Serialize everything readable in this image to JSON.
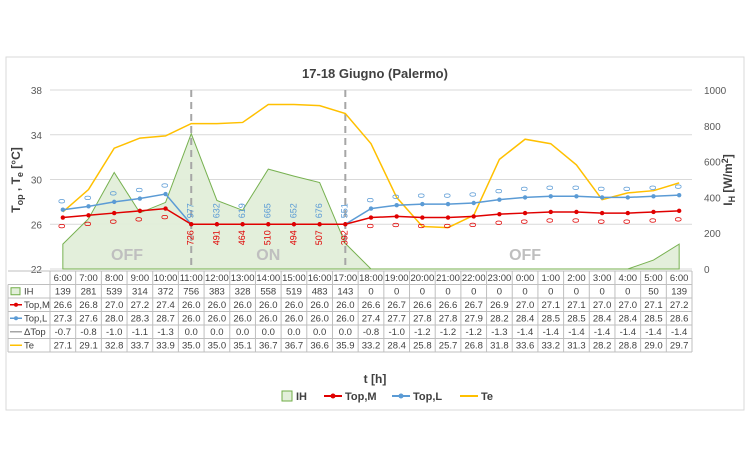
{
  "chart_data": {
    "type": "combo",
    "title": "17-18 Giugno (Palermo)",
    "xlabel": "t [h]",
    "ylabel_left": "Top , Te [°C]",
    "ylabel_left_parts": {
      "t1": "T",
      "s1": "op",
      "sep": " , ",
      "t2": "T",
      "s2": "e",
      "unit": " [°C]"
    },
    "ylabel_right": "IH [W/m²]",
    "ylabel_right_parts": {
      "t1": "I",
      "s1": "H",
      "unit": " [W/m",
      "sup": "2",
      "end": "]"
    },
    "ylim_left": [
      22,
      38
    ],
    "yticks_left": [
      22,
      26,
      30,
      34,
      38
    ],
    "ylim_right": [
      0,
      1000
    ],
    "yticks_right": [
      0,
      200,
      400,
      600,
      800,
      1000
    ],
    "grid": true,
    "legend_position": "bottom",
    "categories": [
      "6:00",
      "7:00",
      "8:00",
      "9:00",
      "10:00",
      "11:00",
      "12:00",
      "13:00",
      "14:00",
      "15:00",
      "16:00",
      "17:00",
      "18:00",
      "19:00",
      "20:00",
      "21:00",
      "22:00",
      "23:00",
      "0:00",
      "1:00",
      "2:00",
      "3:00",
      "4:00",
      "5:00",
      "6:00"
    ],
    "series": [
      {
        "name": "IH",
        "type": "area",
        "axis": "right",
        "color": "#70ad47",
        "values": [
          139,
          281,
          539,
          314,
          372,
          756,
          383,
          328,
          558,
          519,
          483,
          143,
          0,
          0,
          0,
          0,
          0,
          0,
          0,
          0,
          0,
          0,
          0,
          50,
          139
        ],
        "labels": [
          "139",
          "281",
          "539",
          "314",
          "372",
          "756",
          "383",
          "328",
          "558",
          "519",
          "483",
          "143",
          "0",
          "0",
          "0",
          "0",
          "0",
          "0",
          "0",
          "0",
          "0",
          "0",
          "0",
          "50",
          "139"
        ]
      },
      {
        "name": "Top,M",
        "type": "line",
        "axis": "left",
        "color": "#e00000",
        "values": [
          26.6,
          26.8,
          27.0,
          27.2,
          27.4,
          26.0,
          26.0,
          26.0,
          26.0,
          26.0,
          26.0,
          26.0,
          26.6,
          26.7,
          26.6,
          26.6,
          26.7,
          26.9,
          27.0,
          27.1,
          27.1,
          27.0,
          27.0,
          27.1,
          27.2
        ],
        "labels": [
          "26.6",
          "26.8",
          "27.0",
          "27.2",
          "27.4",
          "26.0",
          "26.0",
          "26.0",
          "26.0",
          "26.0",
          "26.0",
          "26.0",
          "26.6",
          "26.7",
          "26.6",
          "26.6",
          "26.7",
          "26.9",
          "27.0",
          "27.1",
          "27.1",
          "27.0",
          "27.0",
          "27.1",
          "27.2"
        ]
      },
      {
        "name": "Top,L",
        "type": "line",
        "axis": "left",
        "color": "#5b9bd5",
        "values": [
          27.3,
          27.6,
          28.0,
          28.3,
          28.7,
          26.0,
          26.0,
          26.0,
          26.0,
          26.0,
          26.0,
          26.0,
          27.4,
          27.7,
          27.8,
          27.8,
          27.9,
          28.2,
          28.4,
          28.5,
          28.5,
          28.4,
          28.4,
          28.5,
          28.6
        ],
        "labels": [
          "27.3",
          "27.6",
          "28.0",
          "28.3",
          "28.7",
          "26.0",
          "26.0",
          "26.0",
          "26.0",
          "26.0",
          "26.0",
          "26.0",
          "27.4",
          "27.7",
          "27.8",
          "27.8",
          "27.9",
          "28.2",
          "28.4",
          "28.5",
          "28.5",
          "28.4",
          "28.4",
          "28.5",
          "28.6"
        ]
      },
      {
        "name": "ΔTop",
        "type": "table-only",
        "color": "#a5a5a5",
        "values": [
          -0.7,
          -0.8,
          -1.0,
          -1.1,
          -1.3,
          0.0,
          0.0,
          0.0,
          0.0,
          0.0,
          0.0,
          0.0,
          -0.8,
          -1.0,
          -1.2,
          -1.2,
          -1.2,
          -1.3,
          -1.4,
          -1.4,
          -1.4,
          -1.4,
          -1.4,
          -1.4,
          -1.4
        ],
        "labels": [
          "-0.7",
          "-0.8",
          "-1.0",
          "-1.1",
          "-1.3",
          "0.0",
          "0.0",
          "0.0",
          "0.0",
          "0.0",
          "0.0",
          "0.0",
          "-0.8",
          "-1.0",
          "-1.2",
          "-1.2",
          "-1.2",
          "-1.3",
          "-1.4",
          "-1.4",
          "-1.4",
          "-1.4",
          "-1.4",
          "-1.4",
          "-1.4"
        ]
      },
      {
        "name": "Te",
        "type": "line",
        "axis": "left",
        "color": "#ffc000",
        "values": [
          27.1,
          29.1,
          32.8,
          33.7,
          33.9,
          35.0,
          35.0,
          35.1,
          36.7,
          36.7,
          36.6,
          35.9,
          33.2,
          28.4,
          25.8,
          25.7,
          26.8,
          31.8,
          33.6,
          33.2,
          31.3,
          28.2,
          28.8,
          29.0,
          29.7
        ],
        "labels": [
          "27.1",
          "29.1",
          "32.8",
          "33.7",
          "33.9",
          "35.0",
          "35.0",
          "35.1",
          "36.7",
          "36.7",
          "36.6",
          "35.9",
          "33.2",
          "28.4",
          "25.8",
          "25.7",
          "26.8",
          "31.8",
          "33.6",
          "33.2",
          "31.3",
          "28.2",
          "28.8",
          "29.0",
          "29.7"
        ]
      }
    ],
    "point_labels_upper": [
      "0",
      "0",
      "0",
      "0",
      "0",
      "977",
      "632",
      "619",
      "665",
      "652",
      "676",
      "551",
      "0",
      "0",
      "0",
      "0",
      "0",
      "0",
      "0",
      "0",
      "0",
      "0",
      "0",
      "0",
      "0"
    ],
    "point_labels_lower": [
      "0",
      "0",
      "0",
      "0",
      "0",
      "726",
      "491",
      "464",
      "510",
      "494",
      "507",
      "392",
      "0",
      "0",
      "0",
      "0",
      "0",
      "0",
      "0",
      "0",
      "0",
      "0",
      "0",
      "0",
      "0"
    ],
    "annotations": [
      {
        "text": "OFF",
        "x_index": 2.5
      },
      {
        "text": "ON",
        "x_index": 8.0
      },
      {
        "text": "OFF",
        "x_index": 18.0
      }
    ],
    "dashed_lines_x_index": [
      5,
      11
    ],
    "legend": [
      {
        "name": "IH",
        "style": "area",
        "color": "#70ad47"
      },
      {
        "name": "Top,M",
        "style": "line-marker",
        "color": "#e00000"
      },
      {
        "name": "Top,L",
        "style": "line-marker",
        "color": "#5b9bd5"
      },
      {
        "name": "Te",
        "style": "line",
        "color": "#ffc000"
      }
    ]
  }
}
